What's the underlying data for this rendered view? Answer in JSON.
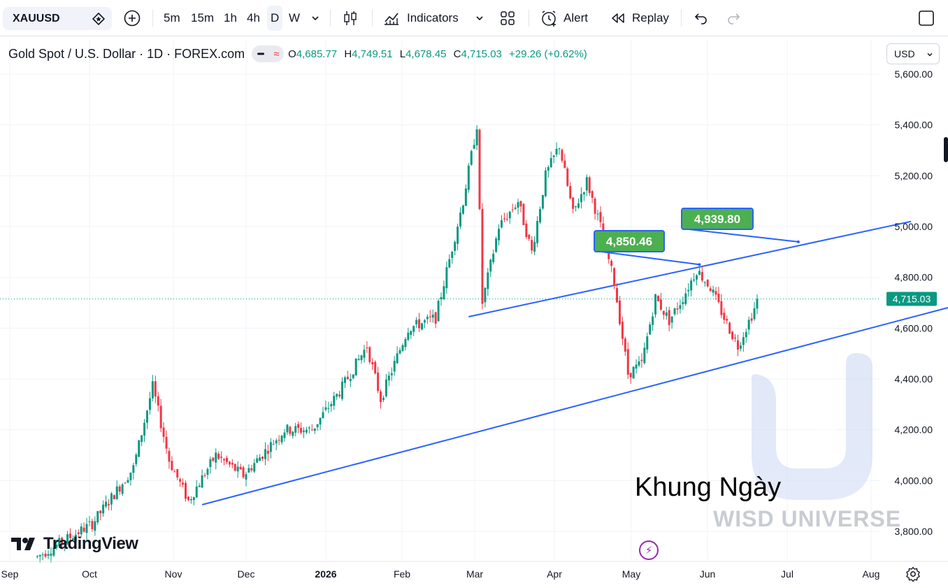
{
  "toolbar": {
    "symbol": "XAUUSD",
    "intervals": [
      "5m",
      "15m",
      "1h",
      "4h",
      "D",
      "W"
    ],
    "active_interval": "D",
    "indicators_label": "Indicators",
    "alert_label": "Alert",
    "replay_label": "Replay"
  },
  "legend": {
    "title": "Gold Spot / U.S. Dollar · 1D · FOREX.com",
    "o_label": "O",
    "o_value": "4,685.77",
    "h_label": "H",
    "h_value": "4,749.51",
    "l_label": "L",
    "l_value": "4,678.45",
    "c_label": "C",
    "c_value": "4,715.03",
    "change": "+29.26 (+0.62%)"
  },
  "currency": "USD",
  "chart_data": {
    "type": "candlestick",
    "y_ticks": [
      "5,600.00",
      "5,400.00",
      "5,200.00",
      "5,000.00",
      "4,800.00",
      "4,600.00",
      "4,400.00",
      "4,200.00",
      "4,000.00",
      "3,800.00"
    ],
    "y_tick_values": [
      5600,
      5400,
      5200,
      5000,
      4800,
      4600,
      4400,
      4200,
      4000,
      3800
    ],
    "x_ticks": [
      "Sep",
      "Oct",
      "Nov",
      "Dec",
      "2026",
      "Feb",
      "Mar",
      "Apr",
      "May",
      "Jun",
      "Jul",
      "Aug"
    ],
    "last_price_label": "4,715.03",
    "last_price": 4715.03,
    "up_color": "#089981",
    "down_color": "#f23645",
    "line_color": "#2962ff",
    "anchors": [
      {
        "t": 10,
        "p": 3700
      },
      {
        "t": 30,
        "p": 3830
      },
      {
        "t": 45,
        "p": 4050
      },
      {
        "t": 52,
        "p": 4370
      },
      {
        "t": 58,
        "p": 4080
      },
      {
        "t": 65,
        "p": 3920
      },
      {
        "t": 75,
        "p": 4100
      },
      {
        "t": 85,
        "p": 4020
      },
      {
        "t": 100,
        "p": 4200
      },
      {
        "t": 110,
        "p": 4200
      },
      {
        "t": 120,
        "p": 4350
      },
      {
        "t": 130,
        "p": 4530
      },
      {
        "t": 135,
        "p": 4320
      },
      {
        "t": 145,
        "p": 4600
      },
      {
        "t": 155,
        "p": 4640
      },
      {
        "t": 165,
        "p": 5100
      },
      {
        "t": 170,
        "p": 5400
      },
      {
        "t": 172,
        "p": 4700
      },
      {
        "t": 178,
        "p": 5000
      },
      {
        "t": 185,
        "p": 5100
      },
      {
        "t": 190,
        "p": 4900
      },
      {
        "t": 195,
        "p": 5200
      },
      {
        "t": 200,
        "p": 5320
      },
      {
        "t": 205,
        "p": 5050
      },
      {
        "t": 210,
        "p": 5180
      },
      {
        "t": 215,
        "p": 5000
      },
      {
        "t": 220,
        "p": 4780
      },
      {
        "t": 225,
        "p": 4420
      },
      {
        "t": 230,
        "p": 4460
      },
      {
        "t": 235,
        "p": 4720
      },
      {
        "t": 240,
        "p": 4630
      },
      {
        "t": 245,
        "p": 4720
      },
      {
        "t": 250,
        "p": 4830
      },
      {
        "t": 255,
        "p": 4760
      },
      {
        "t": 260,
        "p": 4640
      },
      {
        "t": 265,
        "p": 4530
      },
      {
        "t": 272,
        "p": 4700
      }
    ],
    "trend_lines": [
      {
        "t1": 70,
        "p1": 3905,
        "t2": 350,
        "p2": 4705
      },
      {
        "t1": 167,
        "p1": 4645,
        "t2": 328,
        "p2": 5020
      }
    ],
    "callouts": [
      {
        "label": "4,850.46",
        "t": 251,
        "p": 4850.46
      },
      {
        "label": "4,939.80",
        "t": 287,
        "p": 4939.8
      }
    ]
  },
  "watermark": {
    "text": "WISD UNIVERSE",
    "caption": "Khung Ngày",
    "logo": "TradingView"
  }
}
